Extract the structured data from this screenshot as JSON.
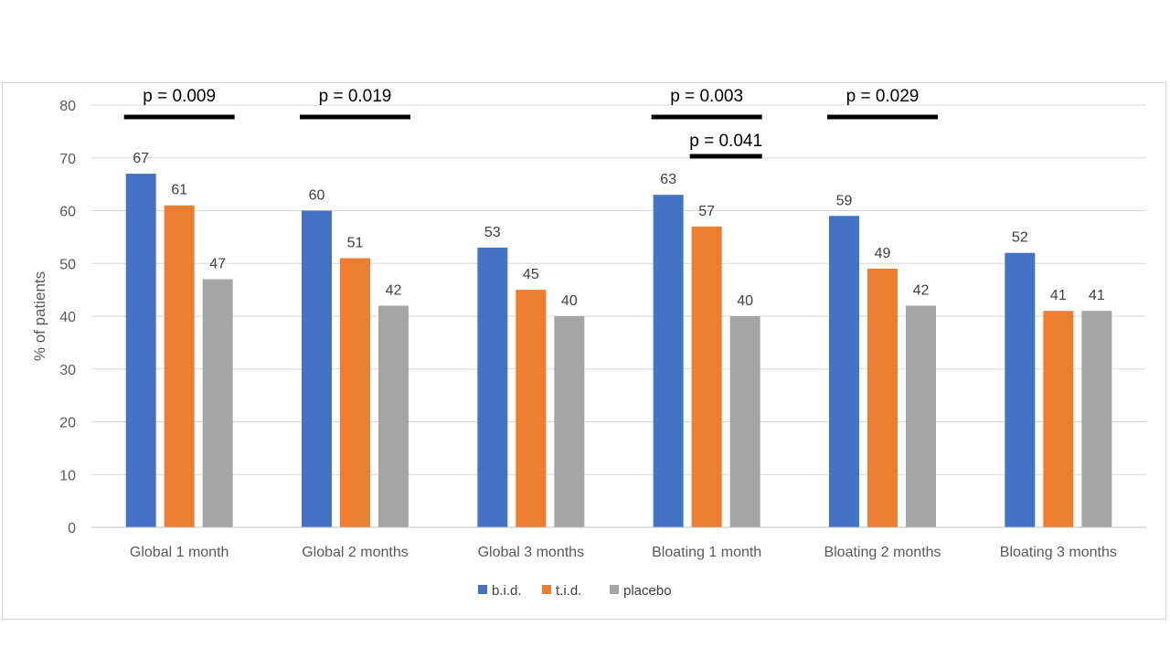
{
  "chart_data": {
    "type": "bar",
    "title": "",
    "xlabel": "",
    "ylabel": "% of patients",
    "ylim": [
      0,
      80
    ],
    "yticks": [
      0,
      10,
      20,
      30,
      40,
      50,
      60,
      70,
      80
    ],
    "grid": true,
    "legend": "bottom",
    "categories": [
      "Global 1 month",
      "Global 2 months",
      "Global 3 months",
      "Bloating 1 month",
      "Bloating 2 months",
      "Bloating 3 months"
    ],
    "series": [
      {
        "name": "b.i.d.",
        "color": "#4472C4",
        "values": [
          67,
          60,
          53,
          63,
          59,
          52
        ]
      },
      {
        "name": "t.i.d.",
        "color": "#ED7D31",
        "values": [
          61,
          51,
          45,
          57,
          49,
          41
        ]
      },
      {
        "name": "placebo",
        "color": "#A5A5A5",
        "values": [
          47,
          42,
          40,
          40,
          42,
          41
        ]
      }
    ],
    "annotations": [
      {
        "text": "p = 0.009",
        "category": 0,
        "from_series": 0,
        "to_series": 2,
        "level": 0
      },
      {
        "text": "p = 0.019",
        "category": 1,
        "from_series": 0,
        "to_series": 2,
        "level": 0
      },
      {
        "text": "p = 0.003",
        "category": 3,
        "from_series": 0,
        "to_series": 2,
        "level": 0
      },
      {
        "text": "p = 0.041",
        "category": 3,
        "from_series": 1,
        "to_series": 2,
        "level": 1
      },
      {
        "text": "p = 0.029",
        "category": 4,
        "from_series": 0,
        "to_series": 2,
        "level": 0
      }
    ]
  }
}
